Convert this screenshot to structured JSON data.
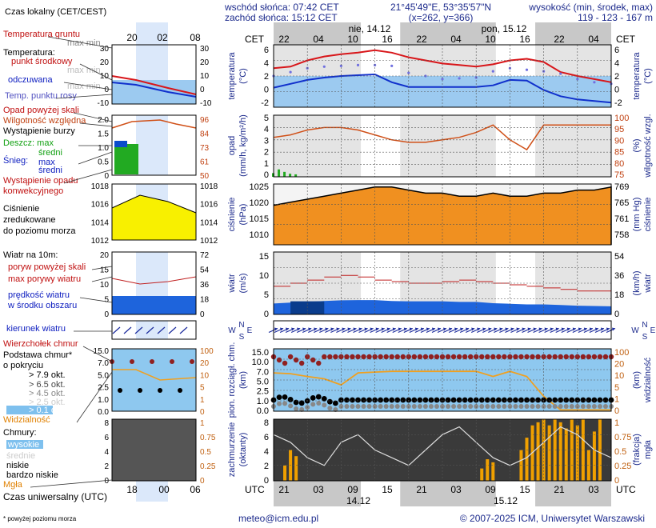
{
  "header": {
    "sunrise": "wschód słońca: 07:42 CET",
    "sunset": "zachód słońca: 15:12 CET",
    "coords": "21°45'49\"E, 53°35'57\"N",
    "grid": "(x=262, y=366)",
    "elevation_label": "wysokość (min, środek, max)",
    "elevation_values": "119 - 123 - 167 m"
  },
  "tz_label": "Czas lokalny (CET/CEST)",
  "cet_label": "CET",
  "utc_label": "UTC",
  "utc_caption": "Czas uniwersalny (UTC)",
  "days": [
    "nie, 14.12",
    "pon, 15.12"
  ],
  "days_bottom": [
    "14.12",
    "15.12"
  ],
  "hours_top": [
    "22",
    "04",
    "10",
    "16",
    "22",
    "04",
    "10",
    "16",
    "22",
    "04"
  ],
  "hours_bottom": [
    "21",
    "03",
    "09",
    "15",
    "21",
    "03",
    "09",
    "15",
    "21",
    "03"
  ],
  "legend_hours_top": [
    "20",
    "02",
    "08"
  ],
  "legend_hours_bottom": [
    "18",
    "00",
    "06"
  ],
  "footer": {
    "note": "* powyżej poziomu morza",
    "email": "meteo@icm.edu.pl",
    "copyright": "© 2007-2025 ICM, Uniwersytet Warszawski"
  },
  "legend": {
    "temp": [
      "Temperatura gruntu",
      "max min",
      "Temperatura:",
      "punkt środkowy",
      "max min",
      "odczuwana",
      "max min",
      "Temp. punktu rosy"
    ],
    "prec": [
      "Opad powyżej skali",
      "Wilgotność względna",
      "Wystąpienie burzy",
      "Deszcz: max",
      "średni",
      "Śnieg:",
      "max",
      "średni",
      "Wystąpienie opadu",
      "konwekcyjnego"
    ],
    "pres": [
      "Ciśnienie",
      "zredukowane",
      "do poziomu morza"
    ],
    "wind": [
      "Wiatr na 10m:",
      "poryw powyżej skali",
      "max porywy wiatru",
      "prędkość wiatru",
      "w środku obszaru"
    ],
    "dir": [
      "kierunek wiatru"
    ],
    "cloudbase": [
      "Wierzchołek chmur",
      "Podstawa chmur*",
      "o pokryciu",
      "> 7.9 okt.",
      "> 6.5 okt.",
      "> 4.5 okt.",
      "> 2.5 okt.",
      "> 0.1 okt.",
      "Widzialność"
    ],
    "clouds": [
      "Chmury:",
      "wysokie",
      "średnie",
      "niskie",
      "bardzo niskie",
      "Mgła"
    ]
  },
  "panels": {
    "temp": {
      "ylabel_left": "temperatura",
      "ylabel_left_unit": "(°C)",
      "ylabel_right": "temperatura",
      "ylabel_right_unit": "(°C)"
    },
    "prec": {
      "ylabel_left": "opad",
      "ylabel_left_unit": "(mm/h, kg/m²/h)",
      "ylabel_right": "wilgotność wzgl.",
      "ylabel_right_unit": "(%)"
    },
    "pres": {
      "ylabel_left": "ciśnienie",
      "ylabel_left_unit": "(hPa)",
      "ylabel_right": "ciśnienie",
      "ylabel_right_unit": "(mm Hg)"
    },
    "wind": {
      "ylabel_left": "wiatr",
      "ylabel_left_unit": "(m/s)",
      "ylabel_right": "wiatr",
      "ylabel_right_unit": "(km/h)"
    },
    "dir": {
      "compass": [
        "N",
        "W",
        "E",
        "S"
      ]
    },
    "vis": {
      "ylabel_left": "pion. rozciągł. chm.",
      "ylabel_left_unit": "(km)",
      "ylabel_right": "widzialność",
      "ylabel_right_unit": "(km)"
    },
    "cloud": {
      "ylabel_left": "zachmurzenie",
      "ylabel_left_unit": "(oktanty)",
      "ylabel_right": "mgła",
      "ylabel_right_unit": "(frakcja)"
    }
  },
  "chart_data": {
    "type": "line",
    "hours_from_start": [
      0,
      3,
      6,
      9,
      12,
      15,
      18,
      21,
      24,
      27,
      30,
      33,
      36,
      39,
      42,
      45,
      48,
      51,
      54,
      57,
      60
    ],
    "series": [
      {
        "name": "punkt środkowy",
        "panel": "temp",
        "values": [
          3,
          3.2,
          4,
          4.5,
          4.8,
          5,
          5.3,
          5,
          4.4,
          4,
          3.6,
          3.4,
          3.2,
          3.5,
          4,
          4.2,
          3.8,
          2.5,
          2,
          1.6,
          1.2
        ]
      },
      {
        "name": "odczuwana",
        "panel": "temp",
        "values": [
          0.5,
          1,
          1.5,
          1.8,
          2,
          2.1,
          2.2,
          1.2,
          0.6,
          0.6,
          0.6,
          0.6,
          0.6,
          0.8,
          1.5,
          1.4,
          0.2,
          -0.6,
          -1,
          -1.2,
          -1.4
        ]
      },
      {
        "name": "Temp. punktu rosy",
        "panel": "temp",
        "values": [
          2,
          2.5,
          3,
          3.2,
          3.3,
          3.4,
          3.4,
          3.3,
          2.4,
          2,
          1.6,
          1.7,
          1.8,
          2.6,
          3,
          2.8,
          2.6,
          2.3,
          1.6,
          1.2,
          1
        ]
      },
      {
        "name": "Wilgotność względna",
        "panel": "prec",
        "values": [
          91,
          92,
          94,
          95,
          95,
          94,
          92,
          90,
          89,
          89,
          90,
          91,
          93,
          96,
          90,
          86,
          96,
          96,
          96,
          96,
          96
        ]
      },
      {
        "name": "Ciśnienie",
        "panel": "pres",
        "values": [
          1018,
          1019,
          1020,
          1021,
          1022,
          1023,
          1024,
          1024,
          1023,
          1022,
          1022,
          1021,
          1021,
          1022,
          1021,
          1021,
          1022,
          1022,
          1023,
          1023,
          1024
        ]
      },
      {
        "name": "prędkość wiatru",
        "panel": "wind",
        "values": [
          3.5,
          3.8,
          4,
          4.3,
          4.5,
          4.6,
          4.6,
          4.3,
          4.2,
          4.2,
          4.2,
          4,
          4,
          3.6,
          3.4,
          3.2,
          3.2,
          3,
          2.8,
          2.7,
          2.6
        ]
      },
      {
        "name": "max porywy wiatru",
        "panel": "wind",
        "values": [
          9,
          10,
          11,
          12,
          12.5,
          12,
          11,
          10.5,
          10,
          10,
          10.5,
          11,
          10.5,
          10,
          9.5,
          9,
          8.5,
          8,
          7.5,
          7.5,
          7
        ]
      },
      {
        "name": "Widzialność",
        "panel": "vis",
        "values": [
          16,
          15,
          12,
          10,
          6,
          16,
          17,
          18,
          18,
          18,
          18,
          18,
          18,
          12,
          18,
          12,
          2,
          0.1,
          0.1,
          0.1,
          0.1
        ]
      }
    ],
    "ylim": {
      "temp": [
        -2,
        6
      ],
      "prec": [
        0,
        5
      ],
      "humidity": [
        75,
        100
      ],
      "pres": [
        1005,
        1025
      ],
      "wind": [
        0,
        20
      ],
      "vis": [
        0,
        15
      ],
      "cloud": [
        0,
        8
      ]
    },
    "ticks": {
      "temp_left": [
        "6",
        "4",
        "2",
        "0",
        "-2"
      ],
      "temp_right": [
        "6",
        "4",
        "2",
        "0",
        "-2"
      ],
      "prec_left": [
        "5",
        "4",
        "3",
        "2",
        "1",
        "0"
      ],
      "prec_right": [
        "100",
        "95",
        "90",
        "85",
        "80",
        "75"
      ],
      "pres_left": [
        "1025",
        "1020",
        "1015",
        "1010"
      ],
      "pres_right": [
        "769",
        "765",
        "761",
        "758"
      ],
      "wind_left": [
        "15",
        "10",
        "5",
        "0"
      ],
      "wind_right": [
        "54",
        "36",
        "18",
        "0"
      ],
      "vis_left": [
        "15.0",
        "10.0",
        "7.0",
        "5.0",
        "2.5",
        "1.0",
        "0.0"
      ],
      "vis_right": [
        "100",
        "20",
        "10",
        "5",
        "1",
        "0"
      ],
      "cloud_left": [
        "8",
        "6",
        "4",
        "2",
        "0"
      ],
      "cloud_right": [
        "1",
        "0.75",
        "0.5",
        "0.25",
        "0"
      ],
      "leg_temp_left": [
        "30",
        "20",
        "10",
        "0",
        "-10"
      ],
      "leg_temp_right": [
        "30",
        "20",
        "10",
        "0",
        "-10"
      ],
      "leg_prec_left": [
        "2.0",
        "1.5",
        "1.0",
        "0.5",
        "0"
      ],
      "leg_prec_right": [
        "96",
        "84",
        "73",
        "61",
        "50"
      ],
      "leg_pres_left": [
        "1018",
        "1016",
        "1014",
        "1012"
      ],
      "leg_pres_right": [
        "1018",
        "1016",
        "1014",
        "1012"
      ],
      "leg_wind_left": [
        "20",
        "15",
        "10",
        "5",
        "0"
      ],
      "leg_wind_right": [
        "72",
        "54",
        "36",
        "18",
        "0"
      ],
      "leg_vis_left": [
        "15.0",
        "7.0",
        "5.0",
        "2.5",
        "1.0",
        "0.0"
      ],
      "leg_vis_right": [
        "100",
        "20",
        "10",
        "5",
        "1",
        "0"
      ],
      "leg_cloud_left": [
        "8",
        "6",
        "4",
        "2",
        "0"
      ],
      "leg_cloud_right": [
        "1",
        "0.75",
        "0.5",
        "0.25",
        "0"
      ]
    },
    "grid": true
  },
  "colors": {
    "temp_main": "#d8161a",
    "temp_feel": "#1030cc",
    "dew": "#7070e0",
    "humidity": "#d05018",
    "rain": "#22aa22",
    "pressure_fill": "#f09020",
    "wind_dark": "#0a3c8c",
    "wind_mid": "#1e64dc",
    "visibility": "#f0a020",
    "cloud_top": "#902020",
    "fog": "#f0a000",
    "sky": "#8ec8ef"
  }
}
